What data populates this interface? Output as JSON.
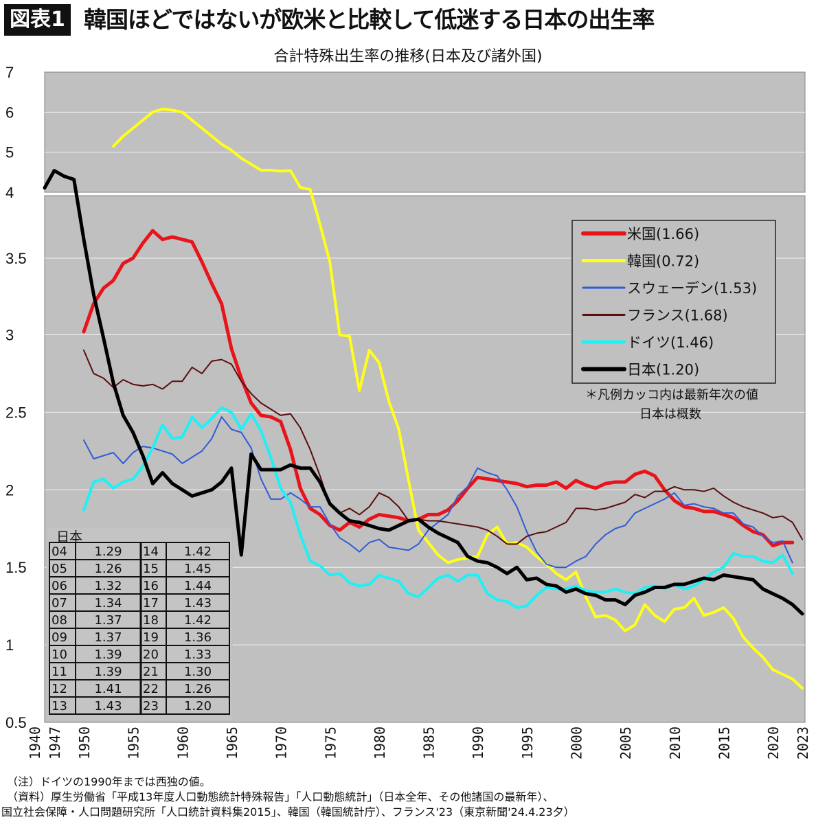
{
  "header": {
    "badge": "図表1",
    "title": "韓国ほどではないが欧米と比較して低迷する日本の出生率"
  },
  "chart_data": {
    "type": "line",
    "title": "合計特殊出生率の推移(日本及び諸外国)",
    "xlabel": "",
    "ylabel": "",
    "y_axis_break": [
      4,
      4
    ],
    "ylim_lower": [
      0.5,
      4
    ],
    "ylim_upper": [
      4,
      7
    ],
    "y_ticks": [
      "7",
      "6",
      "5",
      "4",
      "3.5",
      "3",
      "2.5",
      "2",
      "1.5",
      "1",
      "0.5"
    ],
    "x_ticks": [
      "1940",
      "1947",
      "1950",
      "1955",
      "1960",
      "1965",
      "1970",
      "1975",
      "1980",
      "1985",
      "1990",
      "1995",
      "2000",
      "2005",
      "2010",
      "2015",
      "2020",
      "2023"
    ],
    "grid": true,
    "legend_position": "right",
    "legend_note": [
      "＊凡例カッコ内は最新年次の値",
      "日本は概数"
    ],
    "series": [
      {
        "name": "米国(1.66)",
        "color": "#e8141a",
        "width": 5,
        "start": 1950,
        "values": [
          3.02,
          3.2,
          3.3,
          3.35,
          3.46,
          3.5,
          3.62,
          3.72,
          3.65,
          3.67,
          3.65,
          3.63,
          3.47,
          3.33,
          3.2,
          2.91,
          2.72,
          2.56,
          2.48,
          2.47,
          2.44,
          2.26,
          2.01,
          1.88,
          1.84,
          1.77,
          1.74,
          1.79,
          1.76,
          1.81,
          1.84,
          1.83,
          1.82,
          1.8,
          1.81,
          1.84,
          1.84,
          1.87,
          1.93,
          2.01,
          2.08,
          2.07,
          2.06,
          2.05,
          2.04,
          2.02,
          2.03,
          2.03,
          2.05,
          2.01,
          2.06,
          2.03,
          2.01,
          2.04,
          2.05,
          2.05,
          2.1,
          2.12,
          2.09,
          2.0,
          1.93,
          1.89,
          1.88,
          1.86,
          1.86,
          1.84,
          1.82,
          1.77,
          1.73,
          1.71,
          1.64,
          1.66,
          1.66
        ]
      },
      {
        "name": "韓国(0.72)",
        "color": "#ffff1a",
        "width": 4,
        "start": 1953,
        "values": [
          5.15,
          5.4,
          5.6,
          5.8,
          6.0,
          6.08,
          6.05,
          6.0,
          5.8,
          5.6,
          5.4,
          5.2,
          5.05,
          4.85,
          4.7,
          4.55,
          4.55,
          4.53,
          4.54,
          4.12,
          4.07,
          3.77,
          3.47,
          3.0,
          2.99,
          2.64,
          2.9,
          2.82,
          2.57,
          2.39,
          2.06,
          1.74,
          1.66,
          1.58,
          1.53,
          1.55,
          1.56,
          1.57,
          1.71,
          1.76,
          1.65,
          1.66,
          1.63,
          1.57,
          1.52,
          1.46,
          1.42,
          1.47,
          1.31,
          1.18,
          1.19,
          1.16,
          1.09,
          1.13,
          1.26,
          1.19,
          1.15,
          1.23,
          1.24,
          1.3,
          1.19,
          1.21,
          1.24,
          1.17,
          1.05,
          0.98,
          0.92,
          0.84,
          0.81,
          0.78,
          0.72
        ]
      },
      {
        "name": "スウェーデン(1.53)",
        "color": "#2f5bd6",
        "width": 2,
        "start": 1950,
        "values": [
          2.32,
          2.2,
          2.22,
          2.24,
          2.17,
          2.24,
          2.28,
          2.27,
          2.25,
          2.23,
          2.17,
          2.21,
          2.25,
          2.33,
          2.47,
          2.39,
          2.37,
          2.27,
          2.07,
          1.94,
          1.94,
          1.98,
          1.94,
          1.89,
          1.89,
          1.78,
          1.69,
          1.65,
          1.6,
          1.66,
          1.68,
          1.63,
          1.62,
          1.61,
          1.65,
          1.74,
          1.79,
          1.84,
          1.96,
          2.02,
          2.14,
          2.11,
          2.09,
          2.0,
          1.89,
          1.73,
          1.6,
          1.52,
          1.5,
          1.5,
          1.54,
          1.57,
          1.65,
          1.71,
          1.75,
          1.77,
          1.85,
          1.88,
          1.91,
          1.94,
          1.98,
          1.9,
          1.91,
          1.89,
          1.88,
          1.85,
          1.85,
          1.78,
          1.76,
          1.7,
          1.66,
          1.67,
          1.53
        ]
      },
      {
        "name": "フランス(1.68)",
        "color": "#5a0e0e",
        "width": 2,
        "start": 1950,
        "values": [
          2.9,
          2.75,
          2.72,
          2.66,
          2.71,
          2.68,
          2.67,
          2.68,
          2.65,
          2.7,
          2.7,
          2.79,
          2.75,
          2.83,
          2.84,
          2.81,
          2.7,
          2.62,
          2.56,
          2.52,
          2.48,
          2.49,
          2.4,
          2.26,
          2.09,
          1.9,
          1.85,
          1.88,
          1.84,
          1.89,
          1.98,
          1.95,
          1.89,
          1.8,
          1.81,
          1.8,
          1.8,
          1.79,
          1.78,
          1.77,
          1.76,
          1.74,
          1.7,
          1.65,
          1.65,
          1.7,
          1.72,
          1.73,
          1.76,
          1.79,
          1.88,
          1.88,
          1.87,
          1.88,
          1.9,
          1.92,
          1.97,
          1.95,
          1.99,
          1.99,
          2.02,
          2.0,
          2.0,
          1.99,
          2.01,
          1.96,
          1.92,
          1.89,
          1.87,
          1.85,
          1.82,
          1.83,
          1.79,
          1.68
        ]
      },
      {
        "name": "ドイツ(1.46)",
        "color": "#1ff0f5",
        "width": 4,
        "start": 1950,
        "values": [
          1.87,
          2.05,
          2.07,
          2.01,
          2.05,
          2.07,
          2.15,
          2.27,
          2.42,
          2.33,
          2.34,
          2.47,
          2.4,
          2.46,
          2.53,
          2.5,
          2.39,
          2.49,
          2.38,
          2.21,
          2.01,
          1.92,
          1.71,
          1.54,
          1.51,
          1.45,
          1.46,
          1.4,
          1.38,
          1.39,
          1.45,
          1.43,
          1.41,
          1.33,
          1.31,
          1.37,
          1.43,
          1.45,
          1.41,
          1.45,
          1.45,
          1.33,
          1.29,
          1.28,
          1.24,
          1.25,
          1.32,
          1.37,
          1.36,
          1.36,
          1.38,
          1.35,
          1.34,
          1.34,
          1.36,
          1.34,
          1.33,
          1.37,
          1.38,
          1.36,
          1.39,
          1.36,
          1.38,
          1.42,
          1.47,
          1.5,
          1.59,
          1.57,
          1.57,
          1.54,
          1.53,
          1.58,
          1.46
        ]
      },
      {
        "name": "日本(1.20)",
        "color": "#000000",
        "width": 5,
        "start": 1947,
        "first_point": [
          1940,
          4.11
        ],
        "values": [
          4.54,
          4.4,
          4.32,
          3.65,
          3.26,
          2.98,
          2.69,
          2.48,
          2.37,
          2.22,
          2.04,
          2.11,
          2.04,
          2.0,
          1.96,
          1.98,
          2.0,
          2.05,
          2.14,
          1.58,
          2.23,
          2.13,
          2.13,
          2.13,
          2.16,
          2.14,
          2.14,
          2.05,
          1.91,
          1.85,
          1.8,
          1.79,
          1.77,
          1.75,
          1.74,
          1.77,
          1.8,
          1.81,
          1.76,
          1.72,
          1.69,
          1.66,
          1.57,
          1.54,
          1.53,
          1.5,
          1.46,
          1.5,
          1.42,
          1.43,
          1.39,
          1.38,
          1.34,
          1.36,
          1.33,
          1.32,
          1.29,
          1.29,
          1.26,
          1.32,
          1.34,
          1.37,
          1.37,
          1.39,
          1.39,
          1.41,
          1.43,
          1.42,
          1.45,
          1.44,
          1.43,
          1.42,
          1.36,
          1.33,
          1.3,
          1.26,
          1.2
        ]
      }
    ],
    "japan_table": {
      "header": "日本",
      "rows": [
        [
          "04",
          "1.29",
          "14",
          "1.42"
        ],
        [
          "05",
          "1.26",
          "15",
          "1.45"
        ],
        [
          "06",
          "1.32",
          "16",
          "1.44"
        ],
        [
          "07",
          "1.34",
          "17",
          "1.43"
        ],
        [
          "08",
          "1.37",
          "18",
          "1.42"
        ],
        [
          "09",
          "1.37",
          "19",
          "1.36"
        ],
        [
          "10",
          "1.39",
          "20",
          "1.33"
        ],
        [
          "11",
          "1.39",
          "21",
          "1.30"
        ],
        [
          "12",
          "1.41",
          "22",
          "1.26"
        ],
        [
          "13",
          "1.43",
          "23",
          "1.20"
        ]
      ]
    }
  },
  "notes": [
    "（注）ドイツの1990年までは西独の値。",
    "（資料）厚生労働省「平成13年度人口動態統計特殊報告」「人口動態統計」（日本全年、その他諸国の最新年）、",
    "国立社会保障・人口問題研究所「人口統計資料集2015」、韓国（韓国統計庁）、フランス'23（東京新聞'24.4.23夕）"
  ]
}
